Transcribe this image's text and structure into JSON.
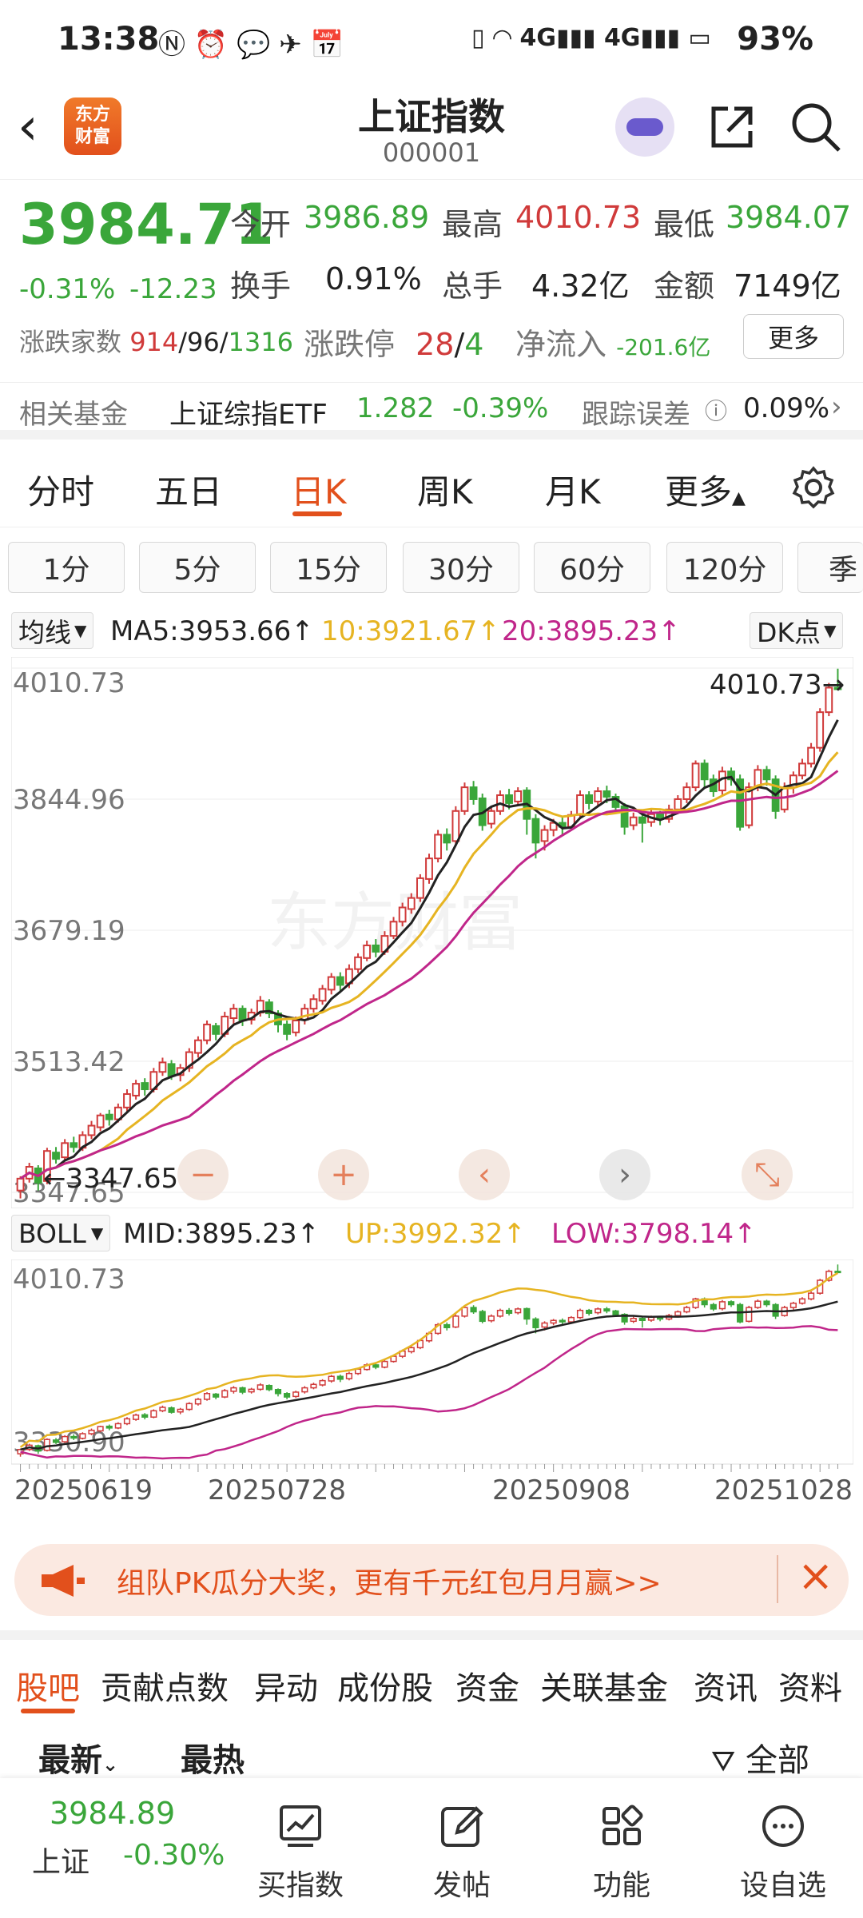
{
  "status_bar": {
    "time": "13:38",
    "battery": "93%",
    "network": "4G"
  },
  "header": {
    "title": "上证指数",
    "code": "000001",
    "logo_line1": "东方",
    "logo_line2": "财富"
  },
  "quote": {
    "price": "3984.71",
    "change_pct": "-0.31%",
    "change": "-12.23",
    "open_label": "今开",
    "open": "3986.89",
    "high_label": "最高",
    "high": "4010.73",
    "low_label": "最低",
    "low": "3984.07",
    "turnover_label": "换手",
    "turnover": "0.91%",
    "volume_label": "总手",
    "volume": "4.32亿",
    "amount_label": "金额",
    "amount": "7149亿",
    "breadth_label": "涨跌家数",
    "breadth_up": "914",
    "breadth_flat": "96",
    "breadth_down": "1316",
    "limit_label": "涨跌停",
    "limit_up": "28",
    "limit_down": "4",
    "netflow_label": "净流入",
    "netflow": "-201.6亿",
    "more": "更多"
  },
  "fund": {
    "label": "相关基金",
    "name": "上证综指ETF",
    "price": "1.282",
    "pct": "-0.39%",
    "tracking_label": "跟踪误差",
    "tracking": "0.09%"
  },
  "period_tabs": [
    "分时",
    "五日",
    "日K",
    "周K",
    "月K",
    "更多"
  ],
  "active_period": "日K",
  "minute_buttons": [
    "1分",
    "5分",
    "15分",
    "30分",
    "60分",
    "120分",
    "季"
  ],
  "ma_legend": {
    "selector": "均线",
    "ma5": "MA5:3953.66",
    "ma10": "10:3921.67",
    "ma20": "20:3895.23",
    "dk": "DK点"
  },
  "boll_legend": {
    "selector": "BOLL",
    "mid": "MID:3895.23",
    "up": "UP:3992.32",
    "low": "LOW:3798.14"
  },
  "colors": {
    "up": "#d03a3a",
    "down": "#3aa63a",
    "ma5": "#222222",
    "ma10": "#e6b422",
    "ma20": "#c0268a",
    "accent": "#e2501c"
  },
  "chart_data": [
    {
      "type": "candlestick",
      "title": "日K",
      "y_ticks": [
        "4010.73",
        "3844.96",
        "3679.19",
        "3513.42",
        "3347.65"
      ],
      "ylim": [
        3347.65,
        4010.73
      ],
      "high_label": "4010.73",
      "low_label": "3347.65",
      "x_ticks": [
        "20250619",
        "20250728",
        "20250908",
        "20251028"
      ],
      "series": [
        {
          "name": "MA5",
          "last": 3953.66
        },
        {
          "name": "10",
          "last": 3921.67
        },
        {
          "name": "20",
          "last": 3895.23
        }
      ],
      "candles": [
        [
          3350,
          3365,
          3340,
          3368
        ],
        [
          3365,
          3380,
          3360,
          3385
        ],
        [
          3378,
          3360,
          3350,
          3382
        ],
        [
          3362,
          3400,
          3358,
          3404
        ],
        [
          3398,
          3390,
          3384,
          3405
        ],
        [
          3392,
          3410,
          3388,
          3415
        ],
        [
          3410,
          3405,
          3398,
          3418
        ],
        [
          3404,
          3420,
          3400,
          3425
        ],
        [
          3420,
          3432,
          3415,
          3438
        ],
        [
          3430,
          3445,
          3425,
          3448
        ],
        [
          3446,
          3440,
          3432,
          3452
        ],
        [
          3440,
          3455,
          3436,
          3460
        ],
        [
          3455,
          3472,
          3450,
          3478
        ],
        [
          3470,
          3485,
          3465,
          3490
        ],
        [
          3486,
          3478,
          3470,
          3492
        ],
        [
          3478,
          3500,
          3474,
          3505
        ],
        [
          3500,
          3512,
          3495,
          3518
        ],
        [
          3510,
          3495,
          3490,
          3515
        ],
        [
          3496,
          3505,
          3488,
          3510
        ],
        [
          3505,
          3525,
          3500,
          3530
        ],
        [
          3524,
          3540,
          3518,
          3545
        ],
        [
          3540,
          3560,
          3535,
          3565
        ],
        [
          3558,
          3548,
          3540,
          3562
        ],
        [
          3548,
          3570,
          3544,
          3576
        ],
        [
          3568,
          3580,
          3560,
          3586
        ],
        [
          3580,
          3565,
          3558,
          3584
        ],
        [
          3566,
          3575,
          3560,
          3580
        ],
        [
          3575,
          3590,
          3570,
          3596
        ],
        [
          3588,
          3574,
          3568,
          3592
        ],
        [
          3574,
          3560,
          3550,
          3578
        ],
        [
          3560,
          3548,
          3540,
          3565
        ],
        [
          3550,
          3565,
          3545,
          3570
        ],
        [
          3566,
          3580,
          3560,
          3586
        ],
        [
          3580,
          3592,
          3575,
          3598
        ],
        [
          3590,
          3605,
          3585,
          3610
        ],
        [
          3604,
          3620,
          3598,
          3625
        ],
        [
          3620,
          3610,
          3600,
          3626
        ],
        [
          3612,
          3630,
          3606,
          3636
        ],
        [
          3630,
          3645,
          3625,
          3650
        ],
        [
          3644,
          3660,
          3640,
          3666
        ],
        [
          3660,
          3652,
          3645,
          3668
        ],
        [
          3652,
          3672,
          3648,
          3678
        ],
        [
          3672,
          3690,
          3668,
          3696
        ],
        [
          3690,
          3708,
          3684,
          3714
        ],
        [
          3706,
          3720,
          3700,
          3726
        ],
        [
          3720,
          3745,
          3715,
          3750
        ],
        [
          3744,
          3770,
          3738,
          3776
        ],
        [
          3770,
          3800,
          3765,
          3806
        ],
        [
          3800,
          3790,
          3780,
          3808
        ],
        [
          3792,
          3830,
          3788,
          3836
        ],
        [
          3830,
          3860,
          3825,
          3866
        ],
        [
          3860,
          3845,
          3838,
          3868
        ],
        [
          3846,
          3812,
          3805,
          3852
        ],
        [
          3814,
          3830,
          3808,
          3836
        ],
        [
          3830,
          3850,
          3825,
          3856
        ],
        [
          3850,
          3840,
          3832,
          3858
        ],
        [
          3842,
          3855,
          3836,
          3860
        ],
        [
          3856,
          3820,
          3800,
          3860
        ],
        [
          3820,
          3790,
          3770,
          3826
        ],
        [
          3792,
          3806,
          3780,
          3812
        ],
        [
          3806,
          3815,
          3798,
          3820
        ],
        [
          3815,
          3810,
          3800,
          3822
        ],
        [
          3810,
          3825,
          3805,
          3830
        ],
        [
          3825,
          3850,
          3820,
          3856
        ],
        [
          3850,
          3840,
          3832,
          3855
        ],
        [
          3842,
          3855,
          3836,
          3860
        ],
        [
          3855,
          3848,
          3840,
          3862
        ],
        [
          3848,
          3835,
          3828,
          3852
        ],
        [
          3836,
          3810,
          3800,
          3840
        ],
        [
          3812,
          3822,
          3806,
          3828
        ],
        [
          3822,
          3815,
          3790,
          3826
        ],
        [
          3816,
          3826,
          3810,
          3832
        ],
        [
          3826,
          3820,
          3812,
          3830
        ],
        [
          3820,
          3832,
          3815,
          3838
        ],
        [
          3832,
          3845,
          3826,
          3850
        ],
        [
          3845,
          3860,
          3840,
          3866
        ],
        [
          3860,
          3890,
          3855,
          3894
        ],
        [
          3890,
          3870,
          3860,
          3895
        ],
        [
          3870,
          3855,
          3848,
          3876
        ],
        [
          3856,
          3880,
          3850,
          3886
        ],
        [
          3880,
          3870,
          3862,
          3885
        ],
        [
          3870,
          3810,
          3805,
          3876
        ],
        [
          3812,
          3860,
          3808,
          3866
        ],
        [
          3860,
          3882,
          3855,
          3888
        ],
        [
          3882,
          3870,
          3862,
          3887
        ],
        [
          3870,
          3830,
          3820,
          3875
        ],
        [
          3832,
          3860,
          3828,
          3866
        ],
        [
          3860,
          3875,
          3852,
          3880
        ],
        [
          3875,
          3890,
          3870,
          3896
        ],
        [
          3890,
          3910,
          3885,
          3916
        ],
        [
          3910,
          3955,
          3905,
          3960
        ],
        [
          3955,
          3986,
          3950,
          3992
        ],
        [
          3986,
          3985,
          3984,
          4010
        ]
      ]
    },
    {
      "type": "line",
      "title": "BOLL",
      "y_ticks": [
        "4010.73",
        "3330.90"
      ],
      "ylim": [
        3330.9,
        4010.73
      ],
      "series": [
        {
          "name": "MID",
          "last": 3895.23
        },
        {
          "name": "UP",
          "last": 3992.32
        },
        {
          "name": "LOW",
          "last": 3798.14
        }
      ]
    }
  ],
  "chart_controls": [
    "minus",
    "plus",
    "left",
    "right",
    "expand"
  ],
  "banner": {
    "text": "组队PK瓜分大奖，更有千元红包月月赢>>"
  },
  "sub_tabs": [
    "股吧",
    "贡献点数",
    "异动",
    "成份股",
    "资金",
    "关联基金",
    "资讯",
    "资料"
  ],
  "sort": {
    "latest": "最新",
    "hot": "最热",
    "filter": "全部"
  },
  "bottom_bar": {
    "index_price": "3984.89",
    "index_name": "上证",
    "index_pct": "-0.30%",
    "items": [
      "买指数",
      "发帖",
      "功能",
      "设自选"
    ]
  }
}
